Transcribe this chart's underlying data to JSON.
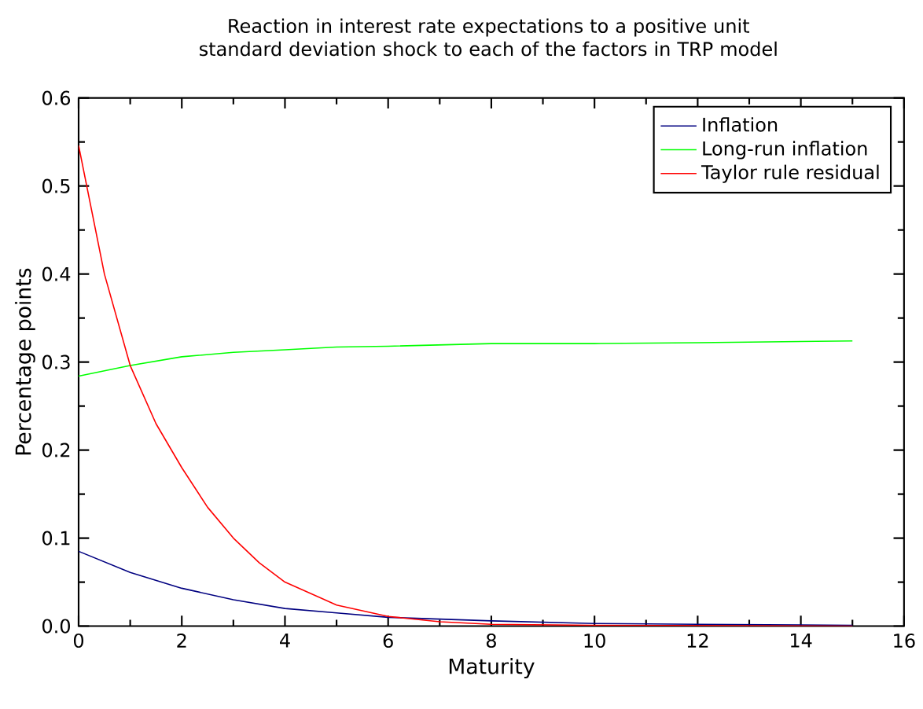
{
  "chart_data": {
    "type": "line",
    "title": "Reaction in interest rate expectations to a positive unit standard deviation shock to each of the factors in TRP model",
    "xlabel": "Maturity",
    "ylabel": "Percentage points",
    "xlim": [
      0,
      16
    ],
    "ylim": [
      0,
      0.6
    ],
    "xticks": [
      0,
      2,
      4,
      6,
      8,
      10,
      12,
      14,
      16
    ],
    "yticks": [
      {
        "value": 0,
        "label": "0.0"
      },
      0.1,
      0.2,
      0.3,
      0.4,
      0.5,
      0.6
    ],
    "legend": "top right",
    "grid": false,
    "marker": "none",
    "line_style": "solid",
    "series": [
      {
        "name": "Inflation",
        "color": "#000080",
        "x": [
          0,
          1,
          2,
          3,
          4,
          5,
          6,
          8,
          10,
          12,
          15
        ],
        "values": [
          0.085,
          0.061,
          0.043,
          0.03,
          0.02,
          0.015,
          0.01,
          0.006,
          0.003,
          0.002,
          0.001
        ]
      },
      {
        "name": "Long-run inflation",
        "color": "#00ff00",
        "x": [
          0,
          1,
          2,
          3,
          4,
          5,
          6,
          8,
          10,
          12,
          15
        ],
        "values": [
          0.284,
          0.296,
          0.306,
          0.311,
          0.314,
          0.317,
          0.318,
          0.321,
          0.321,
          0.322,
          0.324
        ]
      },
      {
        "name": "Taylor rule residual",
        "color": "#ff0000",
        "x": [
          0,
          0.5,
          1,
          1.5,
          2,
          2.5,
          3,
          3.5,
          4,
          5,
          6,
          7,
          8,
          10,
          15
        ],
        "values": [
          0.546,
          0.4,
          0.296,
          0.23,
          0.18,
          0.135,
          0.1,
          0.072,
          0.05,
          0.024,
          0.011,
          0.005,
          0.002,
          0.001,
          0.0
        ]
      }
    ]
  }
}
